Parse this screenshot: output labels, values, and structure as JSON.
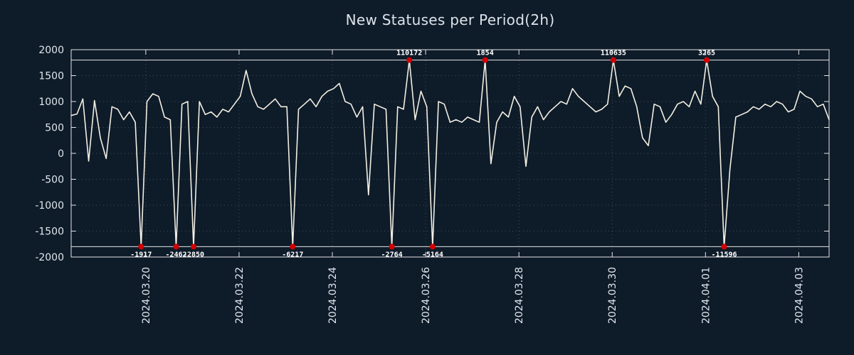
{
  "title": "New Statuses per Period(2h)",
  "colors": {
    "background": "#0e1b29",
    "line": "#f2efe2",
    "marker": "#d40000",
    "axis": "#e6e6e6",
    "grid": "rgba(255,255,255,0.22)",
    "title_color": "#dde3ea"
  },
  "chart_data": {
    "type": "line",
    "title": "New Statuses per Period(2h)",
    "xlabel": "",
    "ylabel": "",
    "ylim": [
      -2000,
      2000
    ],
    "y_tick_step": 500,
    "clip_value": 1800,
    "x_total_days": 16.25,
    "grid": true,
    "legend": "none",
    "x_ticks": [
      {
        "day": 1.6,
        "label": "2024.03.20"
      },
      {
        "day": 3.6,
        "label": "2024.03.22"
      },
      {
        "day": 5.6,
        "label": "2024.03.24"
      },
      {
        "day": 7.6,
        "label": "2024.03.26"
      },
      {
        "day": 9.6,
        "label": "2024.03.28"
      },
      {
        "day": 11.6,
        "label": "2024.03.30"
      },
      {
        "day": 13.6,
        "label": "2024.04.01"
      },
      {
        "day": 15.6,
        "label": "2024.04.03"
      }
    ],
    "y_ticks": [
      {
        "value": 2000,
        "label": "2000"
      },
      {
        "value": 1500,
        "label": "1500"
      },
      {
        "value": 1000,
        "label": "1000"
      },
      {
        "value": 500,
        "label": "500"
      },
      {
        "value": 0,
        "label": "0"
      },
      {
        "value": -500,
        "label": "-500"
      },
      {
        "value": -1000,
        "label": "-1000"
      },
      {
        "value": -1500,
        "label": "-1500"
      },
      {
        "value": -2000,
        "label": "-2000"
      }
    ],
    "values": [
      730,
      760,
      1050,
      -150,
      1020,
      300,
      -100,
      900,
      850,
      650,
      800,
      600,
      -1917,
      1000,
      1150,
      1100,
      700,
      650,
      -2462,
      950,
      1000,
      -2850,
      1000,
      750,
      800,
      700,
      850,
      800,
      950,
      1100,
      1600,
      1150,
      900,
      850,
      950,
      1050,
      900,
      900,
      -6217,
      850,
      950,
      1050,
      900,
      1100,
      1200,
      1250,
      1350,
      1000,
      950,
      700,
      900,
      -800,
      950,
      900,
      850,
      -2764,
      900,
      850,
      110172,
      650,
      1200,
      900,
      -5164,
      1000,
      950,
      600,
      650,
      600,
      700,
      650,
      600,
      1854,
      -200,
      600,
      800,
      700,
      1100,
      900,
      -250,
      700,
      900,
      650,
      800,
      900,
      1000,
      950,
      1250,
      1100,
      1000,
      900,
      800,
      850,
      950,
      110635,
      1100,
      1300,
      1250,
      900,
      300,
      150,
      950,
      900,
      600,
      750,
      950,
      1000,
      900,
      1200,
      950,
      3265,
      1100,
      900,
      -11596,
      -300,
      700,
      750,
      800,
      900,
      850,
      950,
      900,
      1000,
      950,
      800,
      850,
      1200,
      1100,
      1050,
      900,
      950,
      650
    ],
    "annotations": [
      {
        "index": 12,
        "value": -1917,
        "label": "-1917",
        "position": "bottom"
      },
      {
        "index": 18,
        "value": -2462,
        "label": "-2462",
        "position": "bottom"
      },
      {
        "index": 21,
        "value": -2850,
        "label": "-2850",
        "position": "bottom"
      },
      {
        "index": 38,
        "value": -6217,
        "label": "-6217",
        "position": "bottom"
      },
      {
        "index": 55,
        "value": -2764,
        "label": "-2764",
        "position": "bottom"
      },
      {
        "index": 58,
        "value": 110172,
        "label": "110172",
        "position": "top"
      },
      {
        "index": 62,
        "value": -5164,
        "label": "-5164",
        "position": "bottom"
      },
      {
        "index": 71,
        "value": 1854,
        "label": "1854",
        "position": "top"
      },
      {
        "index": 93,
        "value": 110635,
        "label": "110635",
        "position": "top"
      },
      {
        "index": 109,
        "value": 3265,
        "label": "3265",
        "position": "top"
      },
      {
        "index": 112,
        "value": -11596,
        "label": "-11596",
        "position": "bottom"
      }
    ]
  }
}
